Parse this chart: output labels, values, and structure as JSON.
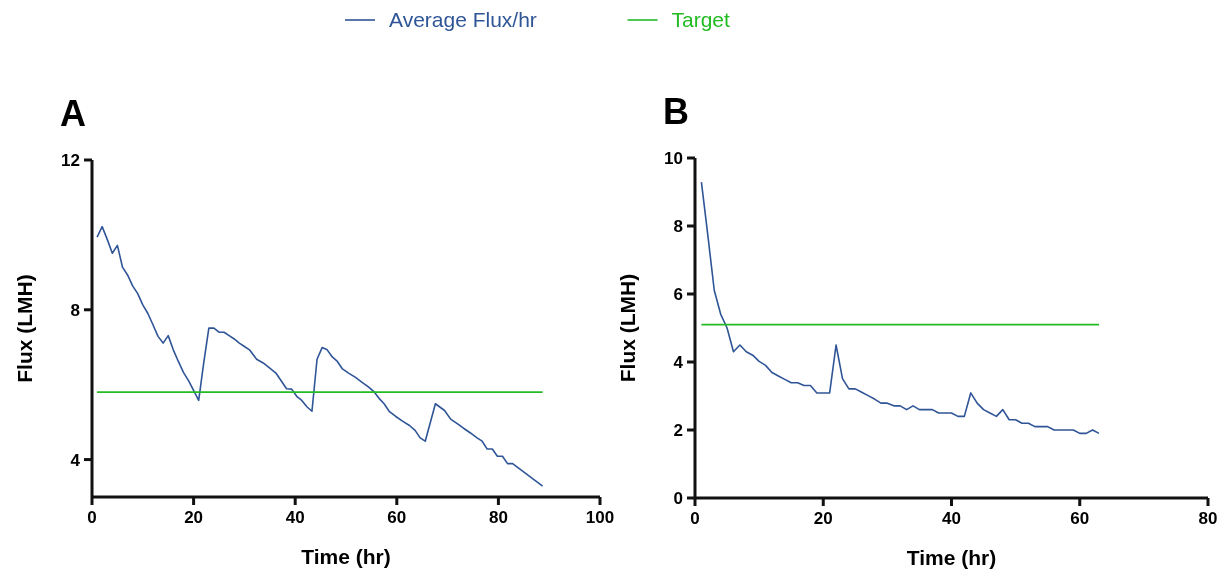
{
  "chart_data": [
    {
      "type": "line",
      "title": "A",
      "xlabel": "Time (hr)",
      "ylabel": "Flux (LMH)",
      "xlim": [
        0,
        100
      ],
      "xticks": [
        0,
        20,
        40,
        60,
        80,
        100
      ],
      "ylim": [
        3,
        12
      ],
      "yticks": [
        4,
        8,
        12
      ],
      "legend": "top",
      "grid": false,
      "marker": "none",
      "line_style": "solid",
      "series": [
        {
          "name": "Average Flux/hr",
          "color": "#2f5597",
          "x": [
            1,
            2,
            3,
            4,
            5,
            6,
            7,
            8,
            9,
            10,
            11,
            12,
            13,
            14,
            15,
            16,
            17,
            18,
            19,
            20,
            21,
            22,
            23,
            24,
            25,
            26,
            27,
            28,
            29,
            30,
            31,
            32.4,
            33.7,
            35,
            36.2,
            37.2,
            38.3,
            39.3,
            40.3,
            41.3,
            42.3,
            43.3,
            44.3,
            45.3,
            46.3,
            47.3,
            48.3,
            49.3,
            50.5,
            51.8,
            53.1,
            54.4,
            55.6,
            56.6,
            57.5,
            58.5,
            59.8,
            61.2,
            62.5,
            63.6,
            64.6,
            65.6,
            67.6,
            69.4,
            70.6,
            71.9,
            73.2,
            74.5,
            75.8,
            76.8,
            77.8,
            78.8,
            79.8,
            80.8,
            81.8,
            82.8,
            88.7
          ],
          "values": [
            9.94,
            10.22,
            9.88,
            9.51,
            9.72,
            9.14,
            8.93,
            8.64,
            8.43,
            8.13,
            7.9,
            7.6,
            7.29,
            7.11,
            7.31,
            6.93,
            6.62,
            6.33,
            6.11,
            5.85,
            5.58,
            6.59,
            7.51,
            7.51,
            7.4,
            7.4,
            7.31,
            7.22,
            7.11,
            7.02,
            6.93,
            6.68,
            6.58,
            6.44,
            6.31,
            6.11,
            5.89,
            5.88,
            5.69,
            5.58,
            5.41,
            5.29,
            6.68,
            6.99,
            6.93,
            6.74,
            6.62,
            6.42,
            6.31,
            6.2,
            6.07,
            5.94,
            5.8,
            5.62,
            5.49,
            5.29,
            5.15,
            5.02,
            4.91,
            4.78,
            4.58,
            4.49,
            5.49,
            5.31,
            5.08,
            4.96,
            4.83,
            4.71,
            4.58,
            4.49,
            4.28,
            4.28,
            4.09,
            4.09,
            3.89,
            3.89,
            3.29
          ]
        },
        {
          "name": "Target",
          "color": "#22bb22",
          "x": [
            1,
            88.7
          ],
          "values": [
            5.8,
            5.8
          ]
        }
      ]
    },
    {
      "type": "line",
      "title": "B",
      "xlabel": "Time (hr)",
      "ylabel": "Flux (LMH)",
      "xlim": [
        0,
        80
      ],
      "xticks": [
        0,
        20,
        40,
        60,
        80
      ],
      "ylim": [
        0,
        10
      ],
      "yticks": [
        0,
        2,
        4,
        6,
        8,
        10
      ],
      "grid": false,
      "marker": "none",
      "line_style": "solid",
      "series": [
        {
          "color": "#2f5597",
          "x": [
            1,
            2,
            3,
            4,
            5,
            6,
            7,
            8,
            9,
            10,
            11,
            12,
            13,
            14,
            15,
            16,
            17,
            18,
            19,
            20,
            21,
            22,
            23,
            24,
            25,
            26,
            27,
            28,
            29,
            30,
            31,
            32,
            33,
            34,
            35,
            36,
            37,
            38,
            39,
            40,
            41,
            42,
            43,
            44,
            45,
            46,
            47,
            48,
            49,
            50,
            51,
            52,
            53,
            54,
            55,
            56,
            57,
            58,
            59,
            60,
            61,
            62,
            63
          ],
          "values": [
            9.29,
            7.73,
            6.11,
            5.41,
            5.0,
            4.3,
            4.5,
            4.3,
            4.2,
            4.02,
            3.9,
            3.69,
            3.59,
            3.49,
            3.39,
            3.39,
            3.31,
            3.31,
            3.09,
            3.09,
            3.09,
            4.5,
            3.51,
            3.21,
            3.21,
            3.11,
            3.01,
            2.91,
            2.79,
            2.79,
            2.71,
            2.71,
            2.6,
            2.71,
            2.6,
            2.6,
            2.6,
            2.5,
            2.5,
            2.5,
            2.4,
            2.4,
            3.09,
            2.79,
            2.6,
            2.5,
            2.4,
            2.6,
            2.3,
            2.3,
            2.2,
            2.2,
            2.1,
            2.1,
            2.1,
            2.0,
            2.0,
            2.0,
            2.0,
            1.9,
            1.9,
            2.0,
            1.9
          ]
        },
        {
          "color": "#22bb22",
          "x": [
            1,
            63
          ],
          "values": [
            5.1,
            5.1
          ]
        }
      ]
    }
  ]
}
